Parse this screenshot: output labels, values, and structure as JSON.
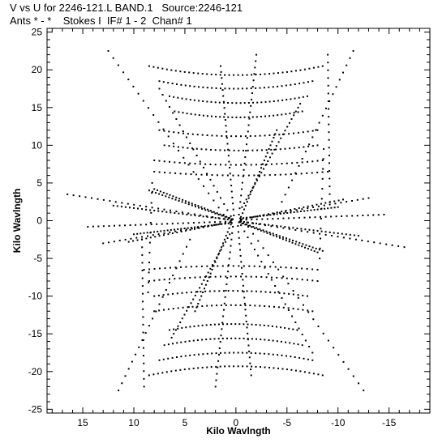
{
  "header": {
    "line1": "V vs U for 2246-121.L BAND.1   Source:2246-121",
    "line2": "Ants * - *    Stokes I  IF# 1 - 2  Chan# 1"
  },
  "chart_data": {
    "type": "scatter",
    "title": "V vs U for 2246-121.L BAND.1   Source:2246-121",
    "subtitle": "Ants * - *    Stokes I  IF# 1 - 2  Chan# 1",
    "xlabel": "Kilo Wavlngth",
    "ylabel": "Kilo Wavlngth",
    "xlim": [
      18.5,
      -19
    ],
    "ylim": [
      -25.5,
      25.5
    ],
    "xticks": [
      15,
      10,
      5,
      0,
      -5,
      -10,
      -15
    ],
    "yticks": [
      25,
      20,
      15,
      10,
      5,
      0,
      -5,
      -10,
      -15,
      -20,
      -25
    ],
    "grid": false,
    "tracks": [
      {
        "start": [
          -0.6,
          1.8
        ],
        "end": [
          -6.3,
          15.5
        ],
        "points": 28
      },
      {
        "start": [
          0.6,
          -1.8
        ],
        "end": [
          6.3,
          -15.5
        ],
        "points": 28
      },
      {
        "start": [
          -4.5,
          2.5
        ],
        "end": [
          -11.5,
          22.5
        ],
        "points": 22
      },
      {
        "start": [
          4.5,
          -2.5
        ],
        "end": [
          11.5,
          -22.5
        ],
        "points": 22
      },
      {
        "start": [
          -0.3,
          0.8
        ],
        "end": [
          -2.0,
          22.0
        ],
        "points": 26
      },
      {
        "start": [
          0.3,
          -0.8
        ],
        "end": [
          2.0,
          -22.0
        ],
        "points": 26
      },
      {
        "start": [
          -0.5,
          0.5
        ],
        "end": [
          -4.0,
          12.0
        ],
        "points": 24
      },
      {
        "start": [
          0.5,
          -0.5
        ],
        "end": [
          4.0,
          -12.0
        ],
        "points": 24
      },
      {
        "start": [
          0.5,
          0.6
        ],
        "end": [
          7.5,
          17.5
        ],
        "points": 22
      },
      {
        "start": [
          -0.5,
          -0.6
        ],
        "end": [
          -7.5,
          -17.5
        ],
        "points": 22
      },
      {
        "start": [
          1.2,
          0.8
        ],
        "end": [
          12.5,
          22.5
        ],
        "points": 24
      },
      {
        "start": [
          -1.2,
          -0.8
        ],
        "end": [
          -12.5,
          -22.5
        ],
        "points": 24
      },
      {
        "start": [
          0.2,
          0.7
        ],
        "end": [
          1.5,
          20.5
        ],
        "points": 26
      },
      {
        "start": [
          -0.2,
          -0.7
        ],
        "end": [
          -1.5,
          -20.5
        ],
        "points": 26
      },
      {
        "start": [
          -0.4,
          0.3
        ],
        "end": [
          -10.0,
          1.8
        ],
        "points": 30
      },
      {
        "start": [
          0.4,
          -0.3
        ],
        "end": [
          10.0,
          -1.8
        ],
        "points": 30
      },
      {
        "start": [
          0.4,
          0.1
        ],
        "end": [
          12.0,
          2.0
        ],
        "points": 30
      },
      {
        "start": [
          -0.4,
          -0.1
        ],
        "end": [
          -12.0,
          -2.0
        ],
        "points": 30
      },
      {
        "start": [
          0.5,
          0.1
        ],
        "end": [
          16.5,
          3.5
        ],
        "points": 28
      },
      {
        "start": [
          -0.5,
          -0.1
        ],
        "end": [
          -16.5,
          -3.5
        ],
        "points": 28
      },
      {
        "start": [
          0.5,
          -0.1
        ],
        "end": [
          14.5,
          -0.8
        ],
        "points": 28
      },
      {
        "start": [
          -0.5,
          0.1
        ],
        "end": [
          -14.5,
          0.8
        ],
        "points": 28
      },
      {
        "start": [
          0.4,
          0.2
        ],
        "end": [
          8.5,
          4.0
        ],
        "points": 26
      },
      {
        "start": [
          -0.4,
          -0.2
        ],
        "end": [
          -8.5,
          -4.0
        ],
        "points": 26
      },
      {
        "start": [
          -0.3,
          -0.2
        ],
        "end": [
          -8.0,
          -4.2
        ],
        "points": 26
      },
      {
        "start": [
          0.3,
          0.2
        ],
        "end": [
          8.0,
          4.2
        ],
        "points": 26
      },
      {
        "start": [
          0.6,
          -0.2
        ],
        "end": [
          10.5,
          -2.8
        ],
        "points": 24
      },
      {
        "start": [
          -0.6,
          0.2
        ],
        "end": [
          -10.5,
          2.8
        ],
        "points": 24
      },
      {
        "start": [
          -0.5,
          0.2
        ],
        "end": [
          -13.0,
          3.0
        ],
        "points": 24
      },
      {
        "start": [
          0.5,
          -0.2
        ],
        "end": [
          13.0,
          -3.0
        ],
        "points": 24
      },
      {
        "start": [
          -9.0,
          22.0
        ],
        "end": [
          -9.2,
          2.5
        ],
        "points": 20
      },
      {
        "start": [
          9.0,
          -22.0
        ],
        "end": [
          9.2,
          -2.5
        ],
        "points": 20
      },
      {
        "start": [
          8.2,
          5.0
        ],
        "end": [
          8.6,
          -9.5
        ],
        "points": 12
      },
      {
        "start": [
          -8.2,
          -5.0
        ],
        "end": [
          -8.6,
          9.5
        ],
        "points": 12
      }
    ],
    "arcs": [
      {
        "x_start": 8.5,
        "x_end": -8.5,
        "y": 20.5,
        "sag": 1.2,
        "points": 40
      },
      {
        "x_start": 7.5,
        "x_end": -7.5,
        "y": 18.5,
        "sag": 1.0,
        "points": 36
      },
      {
        "x_start": 6.5,
        "x_end": -7.0,
        "y": 16.5,
        "sag": 0.9,
        "points": 34
      },
      {
        "x_start": 6.0,
        "x_end": -6.5,
        "y": 14.5,
        "sag": 0.8,
        "points": 32
      },
      {
        "x_start": 7.5,
        "x_end": -8.0,
        "y": 12.0,
        "sag": 0.8,
        "points": 34
      },
      {
        "x_start": 7.0,
        "x_end": -8.0,
        "y": 10.0,
        "sag": 0.7,
        "points": 34
      },
      {
        "x_start": 8.0,
        "x_end": -8.5,
        "y": 8.0,
        "sag": 0.6,
        "points": 34
      },
      {
        "x_start": 8.0,
        "x_end": -9.0,
        "y": 6.5,
        "sag": 0.5,
        "points": 34
      },
      {
        "x_start": -8.5,
        "x_end": 8.5,
        "y": -20.5,
        "sag": -1.2,
        "points": 40
      },
      {
        "x_start": -7.5,
        "x_end": 7.5,
        "y": -18.5,
        "sag": -1.0,
        "points": 36
      },
      {
        "x_start": -6.5,
        "x_end": 7.0,
        "y": -16.5,
        "sag": -0.9,
        "points": 34
      },
      {
        "x_start": -6.0,
        "x_end": 6.5,
        "y": -14.5,
        "sag": -0.8,
        "points": 32
      },
      {
        "x_start": -7.5,
        "x_end": 8.0,
        "y": -12.0,
        "sag": -0.8,
        "points": 34
      },
      {
        "x_start": -7.0,
        "x_end": 8.0,
        "y": -10.0,
        "sag": -0.7,
        "points": 34
      },
      {
        "x_start": -8.0,
        "x_end": 8.5,
        "y": -8.0,
        "sag": -0.6,
        "points": 34
      },
      {
        "x_start": -8.0,
        "x_end": 9.0,
        "y": -6.5,
        "sag": -0.5,
        "points": 34
      }
    ]
  }
}
